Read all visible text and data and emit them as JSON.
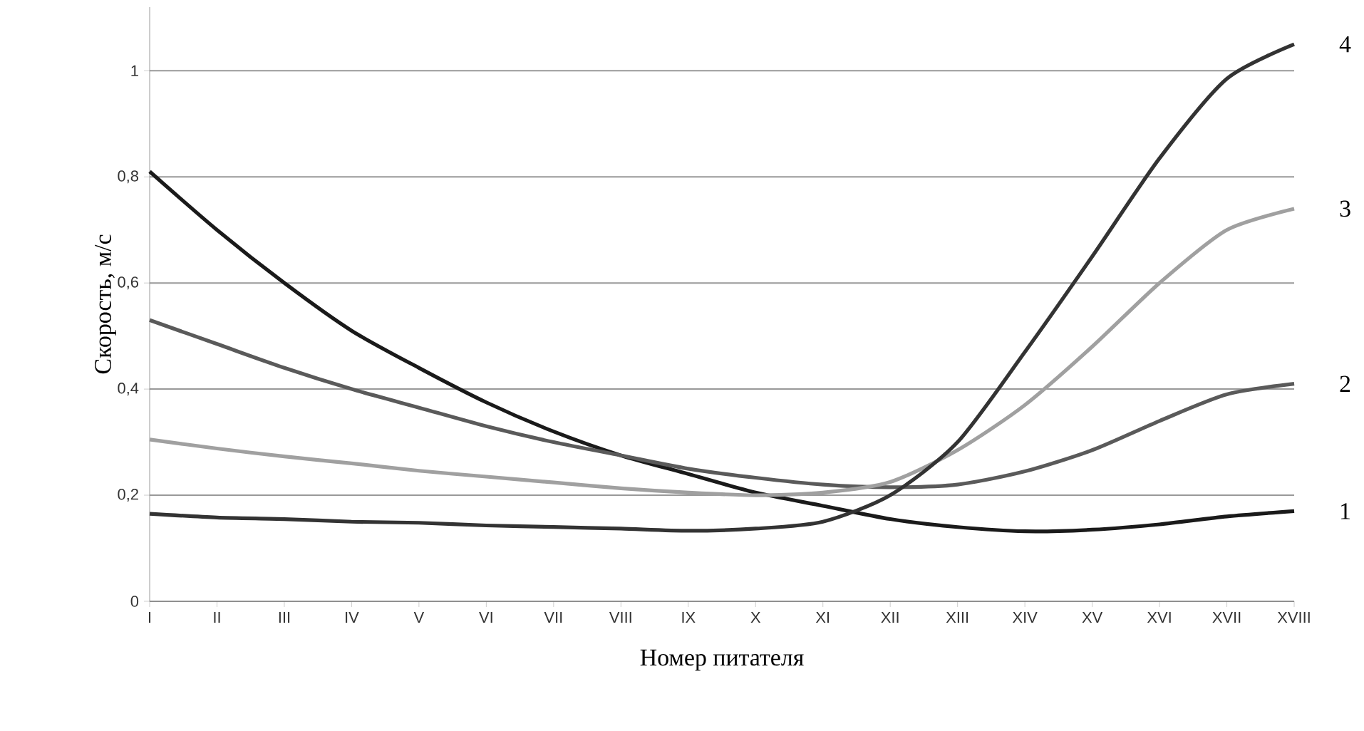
{
  "chart_data": {
    "type": "line",
    "xlabel": "Номер питателя",
    "ylabel": "Скорость, м/с",
    "categories": [
      "I",
      "II",
      "III",
      "IV",
      "V",
      "VI",
      "VII",
      "VIII",
      "IX",
      "X",
      "XI",
      "XII",
      "XIII",
      "XIV",
      "XV",
      "XVI",
      "XVII",
      "XVIII"
    ],
    "series": [
      {
        "name": "1",
        "color": "#1a1a1a",
        "values": [
          0.81,
          0.7,
          0.6,
          0.51,
          0.44,
          0.375,
          0.32,
          0.275,
          0.24,
          0.205,
          0.18,
          0.155,
          0.14,
          0.132,
          0.135,
          0.145,
          0.16,
          0.17
        ]
      },
      {
        "name": "2",
        "color": "#5a5a5a",
        "values": [
          0.53,
          0.485,
          0.44,
          0.4,
          0.365,
          0.33,
          0.3,
          0.275,
          0.25,
          0.233,
          0.22,
          0.215,
          0.22,
          0.245,
          0.285,
          0.34,
          0.39,
          0.41
        ]
      },
      {
        "name": "3",
        "color": "#a0a0a0",
        "values": [
          0.305,
          0.288,
          0.273,
          0.26,
          0.246,
          0.235,
          0.224,
          0.213,
          0.205,
          0.2,
          0.205,
          0.225,
          0.285,
          0.37,
          0.48,
          0.6,
          0.7,
          0.74
        ]
      },
      {
        "name": "4",
        "color": "#333333",
        "values": [
          0.165,
          0.158,
          0.155,
          0.15,
          0.148,
          0.143,
          0.14,
          0.137,
          0.133,
          0.137,
          0.15,
          0.2,
          0.3,
          0.47,
          0.65,
          0.835,
          0.985,
          1.05
        ]
      }
    ],
    "ylim": [
      0,
      1.12
    ],
    "yticks": [
      {
        "value": 0,
        "label": "0"
      },
      {
        "value": 0.2,
        "label": "0,2"
      },
      {
        "value": 0.4,
        "label": "0,4"
      },
      {
        "value": 0.6,
        "label": "0,6"
      },
      {
        "value": 0.8,
        "label": "0,8"
      },
      {
        "value": 1,
        "label": "1"
      }
    ],
    "grid": "y",
    "marker": "none",
    "line_style": "solid"
  }
}
